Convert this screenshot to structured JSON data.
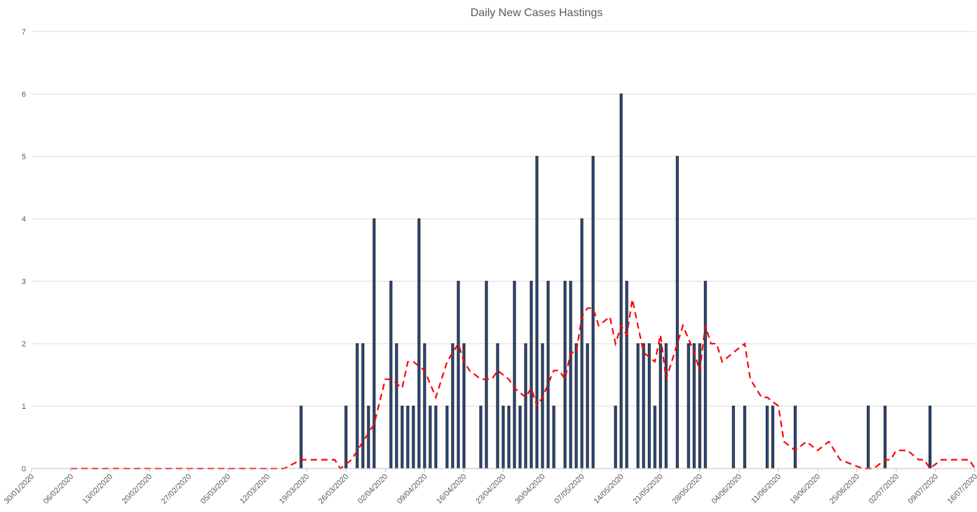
{
  "chart_data": {
    "type": "bar",
    "title": "Daily New Cases Hastings",
    "xlabel": "",
    "ylabel": "",
    "ylim": [
      0,
      7
    ],
    "yticks": [
      0,
      1,
      2,
      3,
      4,
      5,
      6,
      7
    ],
    "xlim": [
      "30/01/2020",
      "16/07/2020"
    ],
    "xticks": [
      "30/01/2020",
      "06/02/2020",
      "13/02/2020",
      "20/02/2020",
      "27/02/2020",
      "05/03/2020",
      "12/03/2020",
      "19/03/2020",
      "26/03/2020",
      "02/04/2020",
      "09/04/2020",
      "16/04/2020",
      "23/04/2020",
      "30/04/2020",
      "07/05/2020",
      "14/05/2020",
      "21/05/2020",
      "28/05/2020",
      "04/06/2020",
      "11/06/2020",
      "18/06/2020",
      "25/06/2020",
      "02/07/2020",
      "09/07/2020",
      "16/07/2020"
    ],
    "grid": true,
    "legend": "none",
    "colors": {
      "bars": "#2f5597",
      "bar_edge": "#0d0d0d",
      "average": "#ff0000"
    },
    "series": [
      {
        "type": "bar",
        "x": [
          "18/03/2020",
          "26/03/2020",
          "28/03/2020",
          "29/03/2020",
          "30/03/2020",
          "31/03/2020",
          "03/04/2020",
          "04/04/2020",
          "05/04/2020",
          "06/04/2020",
          "07/04/2020",
          "08/04/2020",
          "09/04/2020",
          "10/04/2020",
          "11/04/2020",
          "13/04/2020",
          "14/04/2020",
          "15/04/2020",
          "16/04/2020",
          "19/04/2020",
          "20/04/2020",
          "22/04/2020",
          "23/04/2020",
          "24/04/2020",
          "25/04/2020",
          "26/04/2020",
          "27/04/2020",
          "28/04/2020",
          "29/04/2020",
          "30/04/2020",
          "01/05/2020",
          "02/05/2020",
          "04/05/2020",
          "05/05/2020",
          "06/05/2020",
          "07/05/2020",
          "08/05/2020",
          "09/05/2020",
          "13/05/2020",
          "14/05/2020",
          "15/05/2020",
          "17/05/2020",
          "18/05/2020",
          "19/05/2020",
          "20/05/2020",
          "21/05/2020",
          "22/05/2020",
          "24/05/2020",
          "26/05/2020",
          "27/05/2020",
          "28/05/2020",
          "29/05/2020",
          "03/06/2020",
          "05/06/2020",
          "09/06/2020",
          "10/06/2020",
          "14/06/2020",
          "27/06/2020",
          "30/06/2020",
          "08/07/2020"
        ],
        "values": [
          1,
          1,
          2,
          2,
          1,
          4,
          3,
          2,
          1,
          1,
          1,
          4,
          2,
          1,
          1,
          1,
          2,
          3,
          2,
          1,
          3,
          2,
          1,
          1,
          3,
          1,
          2,
          3,
          5,
          2,
          3,
          1,
          3,
          3,
          2,
          4,
          2,
          5,
          1,
          6,
          3,
          2,
          2,
          2,
          1,
          2,
          2,
          5,
          2,
          2,
          2,
          3,
          1,
          1,
          1,
          1,
          1,
          1,
          1,
          1
        ]
      },
      {
        "type": "line",
        "x": [
          "06/02/2020",
          "15/03/2020",
          "18/03/2020",
          "24/03/2020",
          "25/03/2020",
          "27/03/2020",
          "29/03/2020",
          "31/03/2020",
          "02/04/2020",
          "03/04/2020",
          "05/04/2020",
          "06/04/2020",
          "07/04/2020",
          "09/04/2020",
          "11/04/2020",
          "13/04/2020",
          "15/04/2020",
          "16/04/2020",
          "17/04/2020",
          "19/04/2020",
          "21/04/2020",
          "22/04/2020",
          "24/04/2020",
          "25/04/2020",
          "27/04/2020",
          "28/04/2020",
          "29/04/2020",
          "30/04/2020",
          "02/05/2020",
          "03/05/2020",
          "04/05/2020",
          "05/05/2020",
          "06/05/2020",
          "07/05/2020",
          "08/05/2020",
          "09/05/2020",
          "10/05/2020",
          "12/05/2020",
          "13/05/2020",
          "14/05/2020",
          "15/05/2020",
          "16/05/2020",
          "18/05/2020",
          "20/05/2020",
          "21/05/2020",
          "22/05/2020",
          "23/05/2020",
          "24/05/2020",
          "25/05/2020",
          "27/05/2020",
          "28/05/2020",
          "29/05/2020",
          "30/05/2020",
          "31/05/2020",
          "01/06/2020",
          "03/06/2020",
          "05/06/2020",
          "06/06/2020",
          "08/06/2020",
          "09/06/2020",
          "11/06/2020",
          "12/06/2020",
          "14/06/2020",
          "16/06/2020",
          "18/06/2020",
          "20/06/2020",
          "22/06/2020",
          "26/06/2020",
          "27/06/2020",
          "28/06/2020",
          "30/06/2020",
          "01/07/2020",
          "02/07/2020",
          "04/07/2020",
          "06/07/2020",
          "07/07/2020",
          "08/07/2020",
          "10/07/2020",
          "12/07/2020",
          "14/07/2020",
          "15/07/2020",
          "16/07/2020"
        ],
        "values": [
          0,
          0,
          0.14,
          0.14,
          0,
          0.14,
          0.43,
          0.71,
          1.43,
          1.43,
          1.29,
          1.71,
          1.71,
          1.57,
          1.14,
          1.71,
          2.0,
          1.71,
          1.57,
          1.43,
          1.43,
          1.57,
          1.43,
          1.29,
          1.14,
          1.29,
          1.0,
          1.14,
          1.57,
          1.57,
          1.43,
          1.86,
          1.86,
          2.43,
          2.57,
          2.57,
          2.29,
          2.43,
          2.0,
          2.29,
          2.14,
          2.71,
          1.86,
          1.71,
          2.14,
          1.43,
          1.71,
          2.0,
          2.29,
          1.86,
          1.57,
          2.29,
          2.0,
          2.0,
          1.71,
          1.86,
          2.0,
          1.43,
          1.14,
          1.14,
          1.0,
          0.43,
          0.29,
          0.43,
          0.29,
          0.43,
          0.14,
          0.0,
          0.0,
          0.0,
          0.14,
          0.14,
          0.29,
          0.29,
          0.14,
          0.14,
          0.0,
          0.14,
          0.14,
          0.14,
          0.14,
          0.0
        ]
      }
    ]
  }
}
